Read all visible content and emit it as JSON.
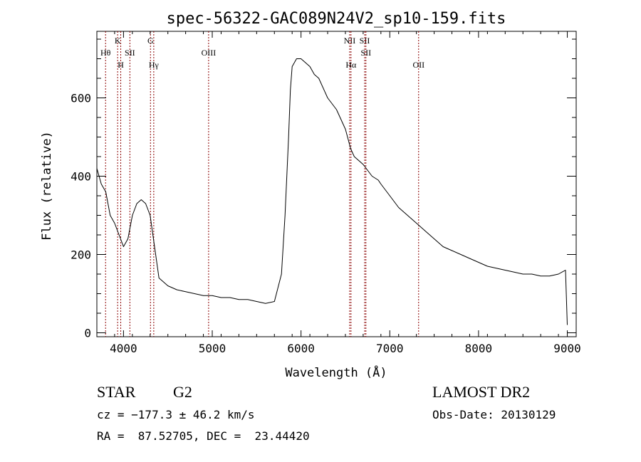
{
  "chart_data": {
    "type": "line",
    "title": "spec-56322-GAC089N24V2_sp10-159.fits",
    "xlabel": "Wavelength (Å)",
    "ylabel": "Flux (relative)",
    "xlim": [
      3700,
      9100
    ],
    "ylim": [
      -10,
      770
    ],
    "xticks": [
      4000,
      5000,
      6000,
      7000,
      8000,
      9000
    ],
    "yticks": [
      0,
      200,
      400,
      600
    ],
    "grid": false,
    "line_color": "#000000",
    "marker_color": "#8b0000",
    "series": [
      {
        "x": [
          3700,
          3750,
          3800,
          3850,
          3900,
          3950,
          4000,
          4050,
          4100,
          4150,
          4200,
          4250,
          4300,
          4350,
          4400,
          4500,
          4600,
          4700,
          4800,
          4900,
          5000,
          5100,
          5200,
          5300,
          5400,
          5500,
          5600,
          5700,
          5780,
          5820,
          5860,
          5880,
          5900,
          5950,
          6000,
          6050,
          6100,
          6150,
          6200,
          6300,
          6400,
          6500,
          6560,
          6600,
          6700,
          6800,
          6870,
          6900,
          7000,
          7100,
          7200,
          7300,
          7400,
          7500,
          7600,
          7700,
          7800,
          7900,
          8000,
          8100,
          8200,
          8300,
          8400,
          8500,
          8600,
          8700,
          8800,
          8900,
          8980,
          9000
        ],
        "y": [
          420,
          380,
          360,
          300,
          280,
          250,
          220,
          240,
          300,
          330,
          340,
          330,
          300,
          220,
          140,
          120,
          110,
          105,
          100,
          95,
          95,
          90,
          90,
          85,
          85,
          80,
          75,
          80,
          150,
          300,
          500,
          620,
          680,
          700,
          700,
          690,
          680,
          660,
          650,
          600,
          570,
          520,
          470,
          450,
          430,
          400,
          390,
          380,
          350,
          320,
          300,
          280,
          260,
          240,
          220,
          210,
          200,
          190,
          180,
          170,
          165,
          160,
          155,
          150,
          150,
          145,
          145,
          150,
          160,
          20
        ]
      }
    ],
    "lines": [
      {
        "name": "Hθ",
        "wavelength": 3798,
        "row": 2
      },
      {
        "name": "K",
        "wavelength": 3934,
        "row": 1
      },
      {
        "name": "H",
        "wavelength": 3969,
        "row": 3
      },
      {
        "name": "SII",
        "wavelength": 4072,
        "row": 2
      },
      {
        "name": "G",
        "wavelength": 4304,
        "row": 1
      },
      {
        "name": "Hγ",
        "wavelength": 4341,
        "row": 3
      },
      {
        "name": "OIII",
        "wavelength": 4959,
        "row": 2
      },
      {
        "name": "NII",
        "wavelength": 6548,
        "row": 1
      },
      {
        "name": "Hα",
        "wavelength": 6563,
        "row": 3
      },
      {
        "name": "SII",
        "wavelength": 6717,
        "row": 1
      },
      {
        "name": "SII",
        "wavelength": 6731,
        "row": 2
      },
      {
        "name": "OII",
        "wavelength": 7325,
        "row": 3
      }
    ]
  },
  "info": {
    "class": "STAR",
    "subclass": "G2",
    "cz": "cz = −177.3 ± 46.2 km/s",
    "radec": "RA =  87.52705, DEC =  23.44420",
    "survey": "LAMOST DR2",
    "obsdate": "Obs-Date: 20130129"
  }
}
